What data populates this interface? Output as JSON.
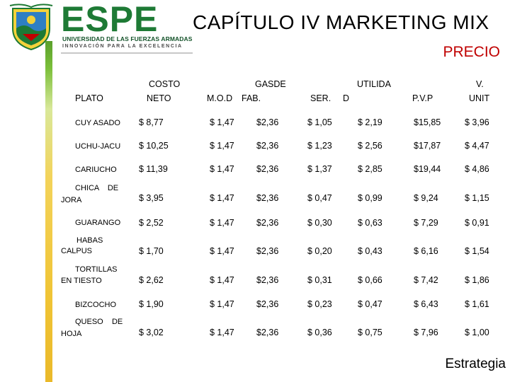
{
  "header": {
    "brand": {
      "word": "ESPE",
      "university": "UNIVERSIDAD DE LAS FUERZAS ARMADAS",
      "motto": "INNOVACIÓN PARA LA EXCELENCIA"
    },
    "chapter_title": "CAPÍTULO IV MARKETING MIX",
    "section_title": "PRECIO"
  },
  "table": {
    "headers": {
      "plato": "PLATO",
      "costo_1": "COSTO",
      "costo_2": "NETO",
      "mod": "M.O.D",
      "gas_1": "GASDE",
      "gas_2": "FAB.",
      "ser": "SER.",
      "util_1": "UTILIDA",
      "util_2": "D",
      "pvp": "P.V.P",
      "vunit_1": "V.",
      "vunit_2": "UNIT"
    },
    "rows": [
      {
        "name_1": "CUY ASADO",
        "name_2": "",
        "costo": "$ 8,77",
        "mod": "$ 1,47",
        "gas": "$2,36",
        "ser": "$ 1,05",
        "util": "$ 2,19",
        "pvp": "$15,85",
        "vunit": "$ 3,96"
      },
      {
        "name_1": "UCHU-JACU",
        "name_2": "",
        "costo": "$ 10,25",
        "mod": "$ 1,47",
        "gas": "$2,36",
        "ser": "$ 1,23",
        "util": "$ 2,56",
        "pvp": "$17,87",
        "vunit": "$ 4,47"
      },
      {
        "name_1": "CARIUCHO",
        "name_2": "",
        "costo": "$ 11,39",
        "mod": "$ 1,47",
        "gas": "$2,36",
        "ser": "$ 1,37",
        "util": "$ 2,85",
        "pvp": "$19,44",
        "vunit": "$ 4,86"
      },
      {
        "name_1": "CHICA    DE",
        "name_2": "JORA",
        "costo": "$ 3,95",
        "mod": "$ 1,47",
        "gas": "$2,36",
        "ser": "$ 0,47",
        "util": "$ 0,99",
        "pvp": "$ 9,24",
        "vunit": "$ 1,15"
      },
      {
        "name_1": "GUARANGO",
        "name_2": "",
        "costo": "$ 2,52",
        "mod": "$ 1,47",
        "gas": "$2,36",
        "ser": "$ 0,30",
        "util": "$ 0,63",
        "pvp": "$ 7,29",
        "vunit": "$ 0,91"
      },
      {
        "name_1": "HABAS",
        "name_2": "CALPUS",
        "costo": "$ 1,70",
        "mod": "$ 1,47",
        "gas": "$2,36",
        "ser": "$ 0,20",
        "util": "$ 0,43",
        "pvp": "$ 6,16",
        "vunit": "$ 1,54"
      },
      {
        "name_1": "TORTILLAS",
        "name_2": "EN TIESTO",
        "costo": "$ 2,62",
        "mod": "$ 1,47",
        "gas": "$2,36",
        "ser": "$ 0,31",
        "util": "$ 0,66",
        "pvp": "$ 7,42",
        "vunit": "$ 1,86"
      },
      {
        "name_1": "BIZCOCHO",
        "name_2": "",
        "costo": "$ 1,90",
        "mod": "$ 1,47",
        "gas": "$2,36",
        "ser": "$ 0,23",
        "util": "$ 0,47",
        "pvp": "$ 6,43",
        "vunit": "$ 1,61"
      },
      {
        "name_1": "QUESO    DE",
        "name_2": "HOJA",
        "costo": "$ 3,02",
        "mod": "$ 1,47",
        "gas": "$2,36",
        "ser": "$ 0,36",
        "util": "$ 0,75",
        "pvp": "$ 7,96",
        "vunit": "$ 1,00"
      }
    ]
  },
  "footer": {
    "label": "Estrategia"
  },
  "colors": {
    "brand_green": "#1e7a35",
    "title_red": "#c00000"
  }
}
